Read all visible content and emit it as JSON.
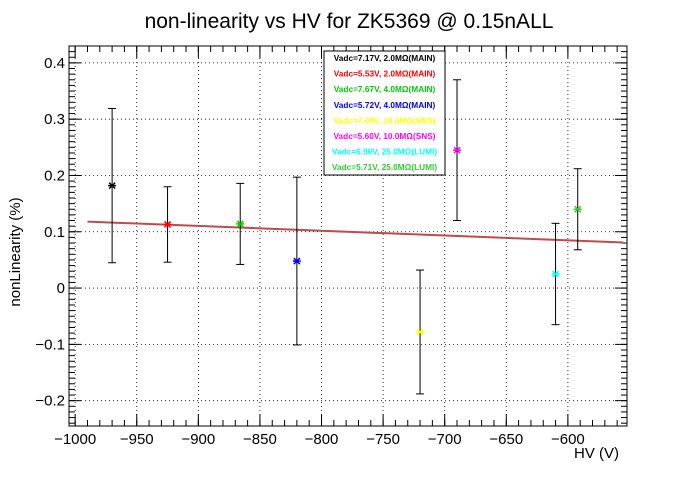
{
  "chart_data": {
    "type": "scatter",
    "title": "non-linearity vs HV for ZK5369 @ 0.15nALL",
    "xlabel": "HV (V)",
    "ylabel": "nonLinearity (%)",
    "xlim": [
      -1005,
      -552
    ],
    "ylim": [
      -0.245,
      0.43
    ],
    "xticks": [
      -1000,
      -950,
      -900,
      -850,
      -800,
      -750,
      -700,
      -650,
      -600
    ],
    "yticks": [
      -0.2,
      -0.1,
      0,
      0.1,
      0.2,
      0.3,
      0.4
    ],
    "xtick_labels": [
      "−1000",
      "−950",
      "−900",
      "−850",
      "−800",
      "−750",
      "−700",
      "−650",
      "−600"
    ],
    "ytick_labels": [
      "−0.2",
      "−0.1",
      "0",
      "0.1",
      "0.2",
      "0.3",
      "0.4"
    ],
    "grid": true,
    "legend_position": "top-center",
    "series": [
      {
        "name": "Vadc=7.17V, 2.0MΩ(MAIN)",
        "color": "#000000",
        "x": -970,
        "y": 0.182,
        "err": 0.137
      },
      {
        "name": "Vadc=5.53V, 2.0MΩ(MAIN)",
        "color": "#ff0000",
        "x": -925,
        "y": 0.113,
        "err": 0.067
      },
      {
        "name": "Vadc=7.67V, 4.0MΩ(MAIN)",
        "color": "#00cc00",
        "x": -866,
        "y": 0.114,
        "err": 0.072
      },
      {
        "name": "Vadc=5.72V, 4.0MΩ(MAIN)",
        "color": "#0000ff",
        "x": -820,
        "y": 0.048,
        "err": 0.149
      },
      {
        "name": "Vadc=7.09V, 10.0MΩ(SNS)",
        "color": "#ffff00",
        "x": -720,
        "y": -0.078,
        "err": 0.11
      },
      {
        "name": "Vadc=5.60V, 10.0MΩ(SNS)",
        "color": "#ff00ff",
        "x": -690,
        "y": 0.245,
        "err": 0.125
      },
      {
        "name": "Vadc=6.90V, 25.0MΩ(LUMI)",
        "color": "#00ffff",
        "x": -610,
        "y": 0.025,
        "err": 0.09
      },
      {
        "name": "Vadc=5.71V, 25.0MΩ(LUMI)",
        "color": "#33cc33",
        "x": -592,
        "y": 0.14,
        "err": 0.072
      }
    ],
    "fit": {
      "color": "#c24a4a",
      "x": [
        -990,
        -555
      ],
      "y": [
        0.118,
        0.081
      ]
    }
  }
}
